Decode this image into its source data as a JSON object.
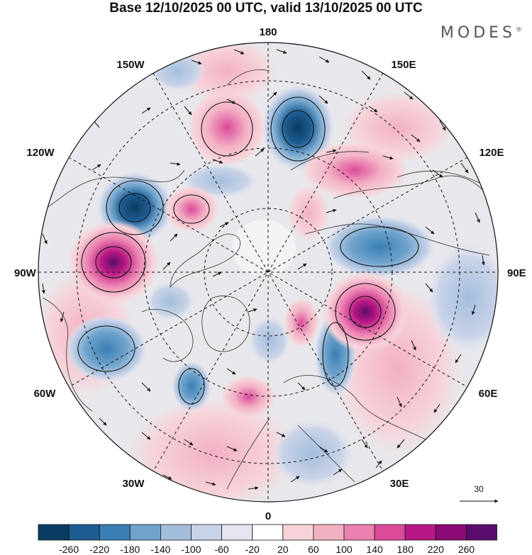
{
  "header": {
    "title": "Base 12/10/2025 00 UTC, valid 13/10/2025 00 UTC",
    "brand": "MODES",
    "brand_mark": "®"
  },
  "map": {
    "projection": "polar-stereographic-north",
    "longitude_labels": {
      "top": "180",
      "bottom": "0",
      "left": "90W",
      "right": "90E",
      "upper_left_1": "150W",
      "upper_left_2": "120W",
      "upper_right_1": "150E",
      "upper_right_2": "120E",
      "lower_left_1": "60W",
      "lower_left_2": "30W",
      "lower_right_1": "60E",
      "lower_right_2": "30E"
    },
    "vector_reference": {
      "label": "30"
    }
  },
  "colorbar": {
    "ticks": [
      "-260",
      "-220",
      "-180",
      "-140",
      "-100",
      "-60",
      "-20",
      "20",
      "60",
      "100",
      "140",
      "180",
      "220",
      "260"
    ],
    "colors": [
      "#0a3d62",
      "#1d5c91",
      "#3a7fb5",
      "#6fa3cc",
      "#a3bedc",
      "#c9d3e8",
      "#e6e6f1",
      "#ffffff",
      "#f6d3d8",
      "#f2b0c3",
      "#ec80b0",
      "#dc4a9a",
      "#b81883",
      "#8c0a76",
      "#5a0d6e"
    ]
  },
  "colors": {
    "land_outline": "#2e2e2e",
    "grid": "#111111",
    "neutral": "#e8e8ec"
  }
}
